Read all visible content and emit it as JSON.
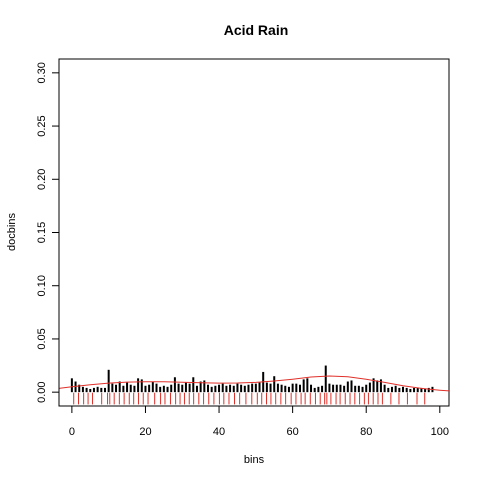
{
  "chart_data": {
    "type": "bar",
    "title": "Acid Rain",
    "xlabel": "bins",
    "ylabel": "docbins",
    "xlim": [
      -3.5,
      102.5
    ],
    "ylim": [
      -0.013,
      0.313
    ],
    "xticks": [
      "0",
      "20",
      "40",
      "60",
      "80",
      "100"
    ],
    "xtick_values": [
      0,
      20,
      40,
      60,
      80,
      100
    ],
    "yticks": [
      "0.00",
      "0.05",
      "0.10",
      "0.15",
      "0.20",
      "0.25",
      "0.30"
    ],
    "ytick_values": [
      0,
      0.05,
      0.1,
      0.15,
      0.2,
      0.25,
      0.3
    ],
    "grid": false,
    "legend": "none",
    "series": [
      {
        "type": "bar",
        "color": "#000000",
        "x": [
          0,
          1,
          2,
          3,
          4,
          5,
          6,
          7,
          8,
          9,
          10,
          11,
          12,
          13,
          14,
          15,
          16,
          17,
          18,
          19,
          20,
          21,
          22,
          23,
          24,
          25,
          26,
          27,
          28,
          29,
          30,
          31,
          32,
          33,
          34,
          35,
          36,
          37,
          38,
          39,
          40,
          41,
          42,
          43,
          44,
          45,
          46,
          47,
          48,
          49,
          50,
          51,
          52,
          53,
          54,
          55,
          56,
          57,
          58,
          59,
          60,
          61,
          62,
          63,
          64,
          65,
          66,
          67,
          68,
          69,
          70,
          71,
          72,
          73,
          74,
          75,
          76,
          77,
          78,
          79,
          80,
          81,
          82,
          83,
          84,
          85,
          86,
          87,
          88,
          89,
          90,
          91,
          92,
          93,
          94,
          95,
          96,
          97,
          98
        ],
        "values": [
          0.013,
          0.01,
          0.007,
          0.005,
          0.004,
          0.003,
          0.004,
          0.005,
          0.004,
          0.004,
          0.021,
          0.008,
          0.007,
          0.01,
          0.006,
          0.009,
          0.007,
          0.006,
          0.013,
          0.012,
          0.006,
          0.007,
          0.01,
          0.008,
          0.005,
          0.006,
          0.005,
          0.007,
          0.014,
          0.008,
          0.007,
          0.009,
          0.008,
          0.014,
          0.006,
          0.01,
          0.011,
          0.007,
          0.005,
          0.006,
          0.007,
          0.008,
          0.006,
          0.007,
          0.006,
          0.008,
          0.007,
          0.006,
          0.007,
          0.008,
          0.008,
          0.009,
          0.019,
          0.009,
          0.008,
          0.015,
          0.008,
          0.007,
          0.006,
          0.005,
          0.008,
          0.008,
          0.007,
          0.012,
          0.013,
          0.007,
          0.004,
          0.005,
          0.006,
          0.025,
          0.008,
          0.007,
          0.007,
          0.007,
          0.006,
          0.01,
          0.011,
          0.006,
          0.006,
          0.005,
          0.007,
          0.009,
          0.013,
          0.011,
          0.012,
          0.007,
          0.004,
          0.005,
          0.006,
          0.004,
          0.005,
          0.004,
          0.003,
          0.004,
          0.004,
          0.004,
          0.003,
          0.004,
          0.005
        ]
      },
      {
        "type": "line",
        "color": "#e0302a",
        "x": [
          -3.5,
          0,
          5,
          10,
          15,
          20,
          25,
          30,
          35,
          40,
          45,
          50,
          55,
          60,
          65,
          70,
          75,
          80,
          85,
          90,
          95,
          100,
          102.5
        ],
        "values": [
          0.0035,
          0.005,
          0.007,
          0.0085,
          0.0095,
          0.0098,
          0.0097,
          0.0093,
          0.0088,
          0.0085,
          0.0086,
          0.0092,
          0.0105,
          0.0122,
          0.0142,
          0.0152,
          0.0145,
          0.0122,
          0.0092,
          0.006,
          0.0035,
          0.0018,
          0.0012
        ]
      },
      {
        "type": "rug",
        "color": "#e0302a",
        "x": [
          0.5,
          1.8,
          3.2,
          4.4,
          5.6,
          8.1,
          9.7,
          10.3,
          11.5,
          12.9,
          14.2,
          15.6,
          16.8,
          18.1,
          19.4,
          20.7,
          22.5,
          24.1,
          25.3,
          26.8,
          28.2,
          29.4,
          30.6,
          31.9,
          33.1,
          34.5,
          35.8,
          37.2,
          38.6,
          40.1,
          41.3,
          42.7,
          44.2,
          45.6,
          47.3,
          48.9,
          50.4,
          51.6,
          52.9,
          54.1,
          55.4,
          56.8,
          58.1,
          59.6,
          60.9,
          62.3,
          63.4,
          64.8,
          66.2,
          67.5,
          68.7,
          69.3,
          70.4,
          71.8,
          72.9,
          74.3,
          75.6,
          76.9,
          78.2,
          79.5,
          80.6,
          81.9,
          83.2,
          84.4,
          86.7,
          88.9,
          91.2,
          93.8,
          95.9
        ]
      }
    ]
  }
}
